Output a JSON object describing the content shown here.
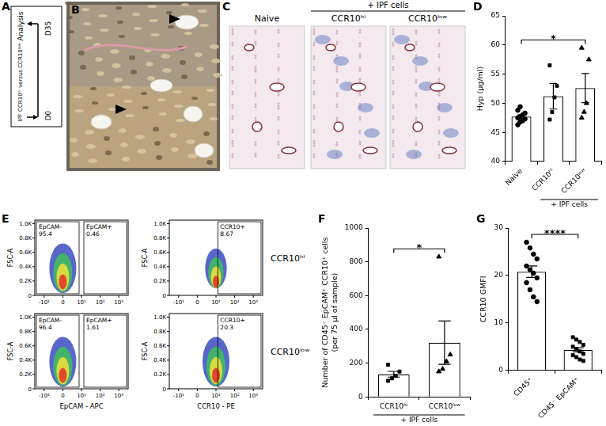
{
  "panels": {
    "A": {
      "label": "A",
      "start": "D0",
      "end": "D35",
      "end_text": "Analysis",
      "groups": "IPF CCR10ʰⁱ versus CCR10ˡᵒʷ"
    },
    "B": {
      "label": "B"
    },
    "C": {
      "label": "C",
      "group_label": "+ IPF cells",
      "images": [
        "Naive",
        "CCR10ʰⁱ",
        "CCR10ˡᵒʷ"
      ]
    },
    "E": {
      "label": "E",
      "rows": [
        "CCR10ʰⁱ",
        "CCR10ˡᵒʷ"
      ],
      "y_label": "FSC-A",
      "ylim": [
        0,
        1050
      ],
      "yticks": [
        0,
        {
          "value": 200,
          "label": "0.2K"
        },
        {
          "value": 400,
          "label": "0.4K"
        },
        {
          "value": 600,
          "label": "0.6K"
        },
        {
          "value": 800,
          "label": "0.8K"
        },
        {
          "value": 1000,
          "label": "1.0K"
        }
      ],
      "x_tick_labels": [
        "-10¹",
        "0",
        "10¹",
        "10²",
        "10³"
      ],
      "plots": [
        {
          "x_label": "EpCAM - APC",
          "gates": [
            [
              {
                "name": "EpCAM-",
                "value": 95.4
              },
              {
                "name": "EpCAM+",
                "value": 0.46
              }
            ],
            [
              {
                "name": "EpCAM-",
                "value": 96.4
              },
              {
                "name": "EpCAM+",
                "value": 1.61
              }
            ]
          ]
        },
        {
          "x_label": "CCR10 - PE",
          "gates": [
            [
              {
                "name": "CCR10+",
                "value": 8.67
              }
            ],
            [
              {
                "name": "CCR10+",
                "value": 20.3
              }
            ]
          ]
        }
      ]
    }
  },
  "chart_data": [
    {
      "panel_label": "D",
      "type": "bar",
      "y_label": "Hyp (μg/ml)",
      "categories": [
        "Naive",
        "CCR10ʰⁱ",
        "CCR10ˡᵒʷ"
      ],
      "values": [
        47.7,
        51.2,
        52.6
      ],
      "errors": [
        0.3,
        2.2,
        2.5
      ],
      "points": [
        {
          "marker": "circle",
          "values": [
            46.3,
            46.8,
            47.0,
            47.3,
            47.5,
            47.7,
            48.0,
            48.3,
            48.8,
            49.4
          ]
        },
        {
          "marker": "square",
          "values": [
            47.2,
            48.5,
            51.0,
            53.0,
            56.5
          ]
        },
        {
          "marker": "triangle",
          "values": [
            47.5,
            48.5,
            50.0,
            57.5,
            59.5
          ]
        }
      ],
      "group": {
        "label": "+ IPF cells",
        "categories": [
          "CCR10ʰⁱ",
          "CCR10ˡᵒʷ"
        ]
      },
      "significance": [
        {
          "between": [
            "Naive",
            "CCR10ˡᵒʷ"
          ],
          "label": "*"
        }
      ],
      "color": "#000000",
      "ylim": [
        40,
        65
      ],
      "yticks": [
        40,
        45,
        50,
        55,
        60,
        65
      ],
      "grid": false
    },
    {
      "panel_label": "F",
      "type": "bar",
      "y_label": [
        "Number of CD45⁻ EpCAM⁺ CCR10⁺ cells",
        "(per 75 μl of sample)"
      ],
      "categories": [
        "CCR10ʰⁱ",
        "CCR10ˡᵒʷ"
      ],
      "values": [
        134,
        321
      ],
      "errors": [
        17,
        128
      ],
      "points": [
        {
          "marker": "square",
          "values": [
            95,
            110,
            125,
            150,
            190
          ]
        },
        {
          "marker": "triangle",
          "values": [
            150,
            165,
            210,
            250,
            830
          ]
        }
      ],
      "group": {
        "label": "+ IPF cells",
        "categories": [
          "CCR10ʰⁱ",
          "CCR10ˡᵒʷ"
        ]
      },
      "significance": [
        {
          "between": [
            "CCR10ʰⁱ",
            "CCR10ˡᵒʷ"
          ],
          "label": "*"
        }
      ],
      "color": "#000000",
      "ylim": [
        0,
        1000
      ],
      "yticks": [
        0,
        200,
        400,
        600,
        800,
        1000
      ],
      "grid": false
    },
    {
      "panel_label": "G",
      "type": "bar",
      "y_label": "CCR10 GMFI",
      "categories": [
        "CD45⁺",
        "CD45⁻ EpCAM⁺"
      ],
      "values": [
        20.8,
        4.35
      ],
      "errors": [
        1.2,
        0.45
      ],
      "points": [
        {
          "marker": "circle",
          "values": [
            27.0,
            25.8,
            24.5,
            23.5,
            22.0,
            21.2,
            20.5,
            19.5,
            18.5,
            17.0,
            15.5,
            14.5
          ]
        },
        {
          "marker": "square",
          "values": [
            7.0,
            6.5,
            6.0,
            5.4,
            5.0,
            4.5,
            4.0,
            3.5,
            3.2,
            2.8,
            2.3,
            2.0
          ]
        }
      ],
      "significance": [
        {
          "between": [
            "CD45⁺",
            "CD45⁻ EpCAM⁺"
          ],
          "label": "****"
        }
      ],
      "color": "#000000",
      "ylim": [
        0,
        30
      ],
      "yticks": [
        0,
        10,
        20,
        30
      ],
      "grid": false
    }
  ]
}
